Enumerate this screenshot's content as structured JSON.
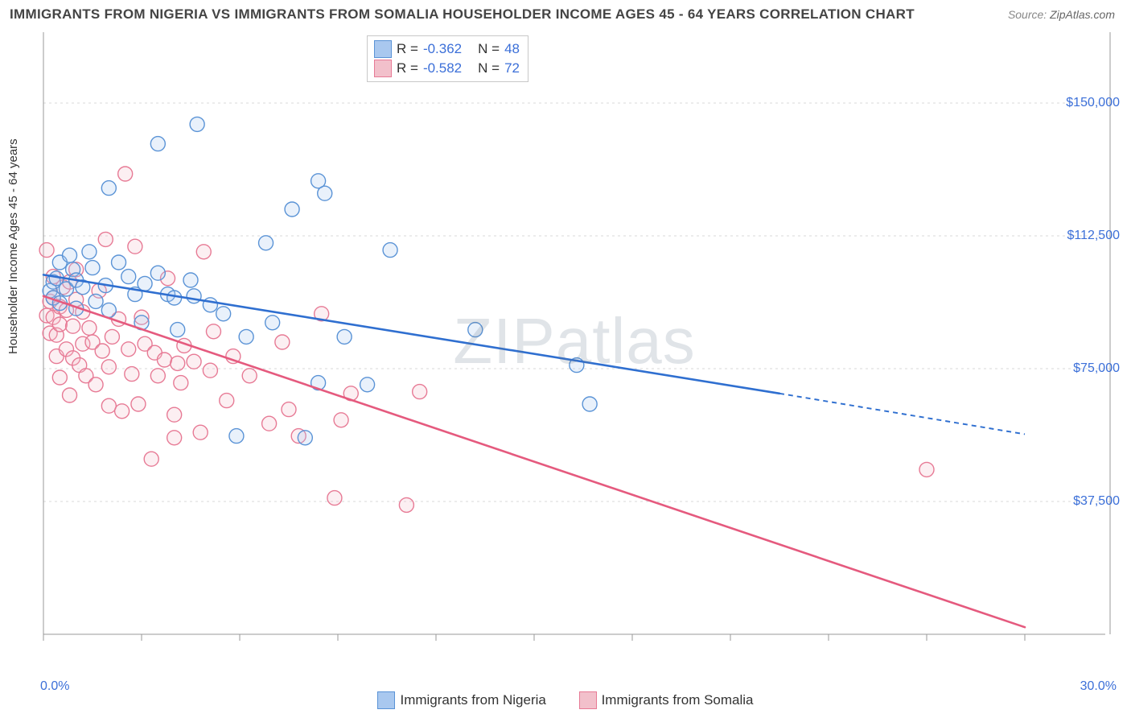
{
  "title": "IMMIGRANTS FROM NIGERIA VS IMMIGRANTS FROM SOMALIA HOUSEHOLDER INCOME AGES 45 - 64 YEARS CORRELATION CHART",
  "source_label": "Source:",
  "source_site": "ZipAtlas.com",
  "y_axis_label": "Householder Income Ages 45 - 64 years",
  "watermark_a": "ZIP",
  "watermark_b": "atlas",
  "chart": {
    "type": "scatter",
    "background_color": "#ffffff",
    "grid_color": "#d8d8d8",
    "axis_color": "#999999",
    "tick_color": "#999999",
    "xlim": [
      0,
      30
    ],
    "ylim": [
      0,
      170000
    ],
    "x_ticks": [
      0,
      3,
      6,
      9,
      12,
      15,
      18,
      21,
      24,
      27,
      30
    ],
    "x_tick_labels_shown": {
      "0": "0.0%",
      "30": "30.0%"
    },
    "y_gridlines": [
      37500,
      75000,
      112500,
      150000
    ],
    "y_tick_labels": [
      "$37,500",
      "$75,000",
      "$112,500",
      "$150,000"
    ],
    "marker_radius": 9,
    "marker_stroke_width": 1.4,
    "marker_fill_opacity": 0.25,
    "line_width": 2.6,
    "dash_pattern": "6,5"
  },
  "series": [
    {
      "name": "Immigrants from Nigeria",
      "color_fill": "#a9c8ef",
      "color_stroke": "#5a93d6",
      "line_color": "#2f6fd0",
      "r_value": "-0.362",
      "n_value": "48",
      "trend": {
        "x1": 0,
        "y1": 101500,
        "x2": 22.5,
        "y2": 68000,
        "x2_dash": 30,
        "y2_dash": 56500
      },
      "points": [
        [
          0.2,
          97000
        ],
        [
          0.3,
          99500
        ],
        [
          0.3,
          95000
        ],
        [
          0.4,
          100500
        ],
        [
          0.5,
          93500
        ],
        [
          0.5,
          105000
        ],
        [
          0.7,
          97500
        ],
        [
          0.8,
          107000
        ],
        [
          0.9,
          103000
        ],
        [
          1.0,
          92000
        ],
        [
          1.0,
          100000
        ],
        [
          1.2,
          98000
        ],
        [
          1.4,
          108000
        ],
        [
          1.5,
          103500
        ],
        [
          1.6,
          94000
        ],
        [
          1.9,
          98500
        ],
        [
          2.0,
          126000
        ],
        [
          2.0,
          91500
        ],
        [
          2.3,
          105000
        ],
        [
          2.6,
          101000
        ],
        [
          2.8,
          96000
        ],
        [
          3.0,
          88000
        ],
        [
          3.1,
          99000
        ],
        [
          3.5,
          138500
        ],
        [
          3.5,
          102000
        ],
        [
          3.8,
          96000
        ],
        [
          4.0,
          95000
        ],
        [
          4.1,
          86000
        ],
        [
          4.5,
          100000
        ],
        [
          4.6,
          95500
        ],
        [
          4.7,
          144000
        ],
        [
          5.1,
          93000
        ],
        [
          5.5,
          90500
        ],
        [
          5.9,
          56000
        ],
        [
          6.2,
          84000
        ],
        [
          6.8,
          110500
        ],
        [
          7.0,
          88000
        ],
        [
          7.6,
          120000
        ],
        [
          8.0,
          55500
        ],
        [
          8.4,
          128000
        ],
        [
          8.4,
          71000
        ],
        [
          8.6,
          124500
        ],
        [
          9.2,
          84000
        ],
        [
          9.9,
          70500
        ],
        [
          10.6,
          108500
        ],
        [
          13.2,
          86000
        ],
        [
          16.3,
          76000
        ],
        [
          16.7,
          65000
        ]
      ]
    },
    {
      "name": "Immigrants from Somalia",
      "color_fill": "#f2c0cb",
      "color_stroke": "#e77a95",
      "line_color": "#e55a7e",
      "r_value": "-0.582",
      "n_value": "72",
      "trend": {
        "x1": 0,
        "y1": 95500,
        "x2": 30,
        "y2": 2000,
        "x2_dash": 30,
        "y2_dash": 2000
      },
      "points": [
        [
          0.1,
          108500
        ],
        [
          0.1,
          90000
        ],
        [
          0.2,
          94000
        ],
        [
          0.2,
          85000
        ],
        [
          0.3,
          89500
        ],
        [
          0.3,
          101000
        ],
        [
          0.3,
          95000
        ],
        [
          0.4,
          84500
        ],
        [
          0.4,
          78500
        ],
        [
          0.5,
          87500
        ],
        [
          0.5,
          92500
        ],
        [
          0.5,
          72500
        ],
        [
          0.6,
          98000
        ],
        [
          0.7,
          91500
        ],
        [
          0.7,
          80500
        ],
        [
          0.8,
          67500
        ],
        [
          0.8,
          99500
        ],
        [
          0.9,
          87000
        ],
        [
          0.9,
          78000
        ],
        [
          1.0,
          103000
        ],
        [
          1.0,
          94500
        ],
        [
          1.1,
          76000
        ],
        [
          1.2,
          82000
        ],
        [
          1.2,
          91000
        ],
        [
          1.3,
          73000
        ],
        [
          1.4,
          86500
        ],
        [
          1.5,
          82500
        ],
        [
          1.6,
          70500
        ],
        [
          1.7,
          97000
        ],
        [
          1.8,
          80000
        ],
        [
          1.9,
          111500
        ],
        [
          2.0,
          75500
        ],
        [
          2.0,
          64500
        ],
        [
          2.1,
          84000
        ],
        [
          2.3,
          89000
        ],
        [
          2.4,
          63000
        ],
        [
          2.5,
          130000
        ],
        [
          2.6,
          80500
        ],
        [
          2.7,
          73500
        ],
        [
          2.8,
          109500
        ],
        [
          2.9,
          65000
        ],
        [
          3.0,
          89500
        ],
        [
          3.1,
          82000
        ],
        [
          3.3,
          49500
        ],
        [
          3.4,
          79500
        ],
        [
          3.5,
          73000
        ],
        [
          3.7,
          77500
        ],
        [
          3.8,
          100500
        ],
        [
          4.0,
          62000
        ],
        [
          4.0,
          55500
        ],
        [
          4.1,
          76500
        ],
        [
          4.2,
          71000
        ],
        [
          4.3,
          81500
        ],
        [
          4.6,
          77000
        ],
        [
          4.8,
          57000
        ],
        [
          4.9,
          108000
        ],
        [
          5.1,
          74500
        ],
        [
          5.2,
          85500
        ],
        [
          5.6,
          66000
        ],
        [
          5.8,
          78500
        ],
        [
          6.3,
          73000
        ],
        [
          6.9,
          59500
        ],
        [
          7.3,
          82500
        ],
        [
          7.5,
          63500
        ],
        [
          7.8,
          56000
        ],
        [
          8.5,
          90500
        ],
        [
          8.9,
          38500
        ],
        [
          9.1,
          60500
        ],
        [
          9.4,
          68000
        ],
        [
          11.1,
          36500
        ],
        [
          11.5,
          68500
        ],
        [
          27.0,
          46500
        ]
      ]
    }
  ],
  "legend_box": {
    "r_label": "R =",
    "n_label": "N ="
  },
  "bottom_legend_labels": [
    "Immigrants from Nigeria",
    "Immigrants from Somalia"
  ]
}
